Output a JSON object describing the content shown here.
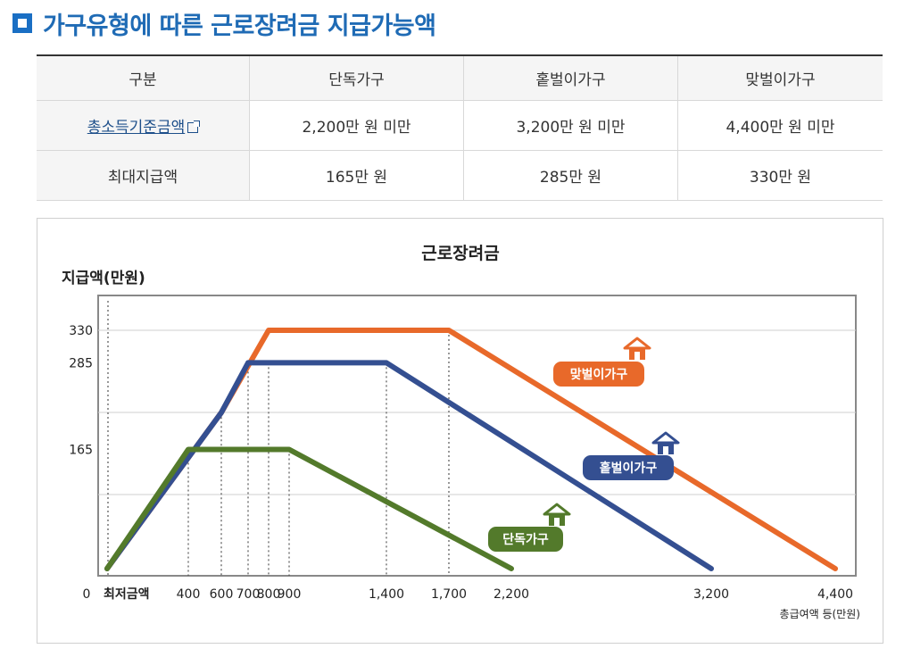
{
  "heading": {
    "title": "가구유형에 따른 근로장려금 지급가능액"
  },
  "table": {
    "headers": [
      "구분",
      "단독가구",
      "홑벌이가구",
      "맞벌이가구"
    ],
    "rows": [
      {
        "label": "총소득기준금액",
        "link": true,
        "values": [
          "2,200만 원 미만",
          "3,200만 원 미만",
          "4,400만 원 미만"
        ]
      },
      {
        "label": "최대지급액",
        "link": false,
        "values": [
          "165만 원",
          "285만 원",
          "330만 원"
        ]
      }
    ]
  },
  "chart_data": {
    "type": "line",
    "title": "근로장려금",
    "ylabel": "지급액(만원)",
    "xlabel": "총급여액 등(만원)",
    "x_ticks": [
      {
        "v": 0,
        "label": "0"
      },
      {
        "v": 150,
        "label": "최저금액"
      },
      {
        "v": 400,
        "label": "400"
      },
      {
        "v": 600,
        "label": "600"
      },
      {
        "v": 700,
        "label": "700"
      },
      {
        "v": 800,
        "label": "800"
      },
      {
        "v": 900,
        "label": "900"
      },
      {
        "v": 1400,
        "label": "1,400"
      },
      {
        "v": 1700,
        "label": "1,700"
      },
      {
        "v": 2200,
        "label": "2,200"
      },
      {
        "v": 3200,
        "label": "3,200"
      },
      {
        "v": 4400,
        "label": "4,400"
      }
    ],
    "y_ticks": [
      {
        "v": 165,
        "label": "165"
      },
      {
        "v": 285,
        "label": "285"
      },
      {
        "v": 330,
        "label": "330"
      }
    ],
    "series": [
      {
        "name": "맞벌이가구",
        "color": "#e8692a",
        "x": [
          0,
          600,
          800,
          1700,
          4400
        ],
        "y": [
          0,
          216,
          330,
          330,
          0
        ]
      },
      {
        "name": "홑벌이가구",
        "color": "#344f91",
        "x": [
          0,
          600,
          700,
          1400,
          3200
        ],
        "y": [
          0,
          216,
          285,
          285,
          0
        ]
      },
      {
        "name": "단독가구",
        "color": "#537a2b",
        "x": [
          0,
          400,
          900,
          2200
        ],
        "y": [
          0,
          165,
          165,
          0
        ]
      }
    ],
    "grid": true,
    "legend": "inline-labels"
  }
}
